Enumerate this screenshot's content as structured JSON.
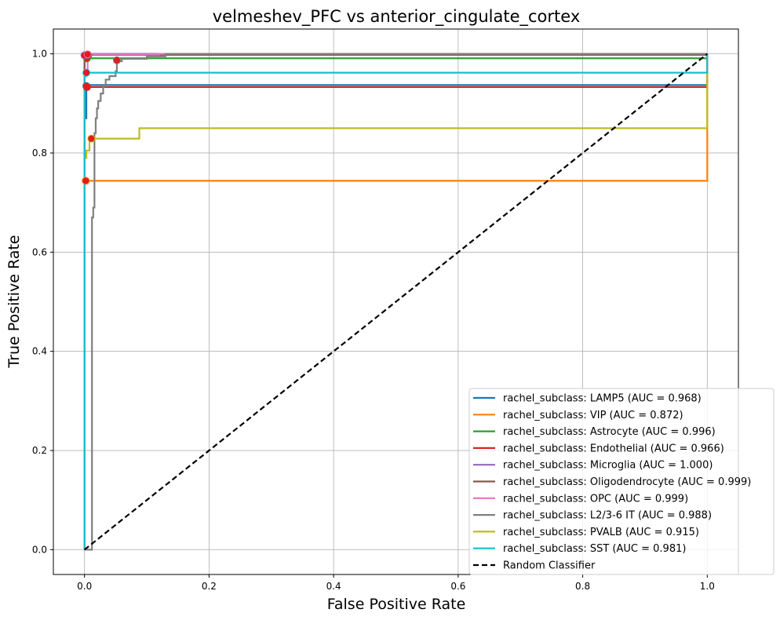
{
  "chart_data": {
    "type": "line",
    "title": "velmeshev_PFC vs anterior_cingulate_cortex",
    "xlabel": "False Positive Rate",
    "ylabel": "True Positive Rate",
    "xlim": [
      -0.05,
      1.05
    ],
    "ylim": [
      -0.05,
      1.05
    ],
    "xticks": [
      "0.0",
      "0.2",
      "0.4",
      "0.6",
      "0.8",
      "1.0"
    ],
    "yticks": [
      "0.0",
      "0.2",
      "0.4",
      "0.6",
      "0.8",
      "1.0"
    ],
    "grid": true,
    "legend_position": "lower-right",
    "series": [
      {
        "name": "rachel_subclass: LAMP5 (AUC = 0.968)",
        "color": "#1f77b4",
        "x": [
          0,
          0,
          0.003,
          0.003,
          0.006,
          0.006,
          1,
          1
        ],
        "y": [
          0,
          0.87,
          0.87,
          0.935,
          0.935,
          0.937,
          0.937,
          1
        ],
        "marker": [
          0.003,
          0.935
        ]
      },
      {
        "name": "rachel_subclass: VIP (AUC = 0.872)",
        "color": "#ff7f0e",
        "x": [
          0,
          0,
          0.003,
          0.003,
          1,
          1
        ],
        "y": [
          0,
          0.74,
          0.74,
          0.744,
          0.744,
          1
        ],
        "marker": [
          0.002,
          0.744
        ]
      },
      {
        "name": "rachel_subclass: Astrocyte (AUC = 0.996)",
        "color": "#2ca02c",
        "x": [
          0,
          0,
          0.004,
          0.004,
          1,
          1
        ],
        "y": [
          0,
          0.985,
          0.985,
          0.991,
          0.991,
          1
        ],
        "marker": [
          0.004,
          0.991
        ]
      },
      {
        "name": "rachel_subclass: Endothelial (AUC = 0.966)",
        "color": "#d62728",
        "x": [
          0,
          0,
          0.004,
          0.004,
          1,
          1
        ],
        "y": [
          0,
          0.93,
          0.93,
          0.933,
          0.933,
          1
        ],
        "marker": [
          0.004,
          0.933
        ]
      },
      {
        "name": "rachel_subclass: Microglia (AUC = 1.000)",
        "color": "#9467bd",
        "x": [
          0,
          0,
          1
        ],
        "y": [
          0,
          1,
          1
        ],
        "marker": [
          0.0,
          0.997
        ]
      },
      {
        "name": "rachel_subclass: Oligodendrocyte (AUC = 0.999)",
        "color": "#8c564b",
        "x": [
          0,
          0,
          0.004,
          0.004,
          1,
          1
        ],
        "y": [
          0,
          0.996,
          0.996,
          0.998,
          0.998,
          1
        ],
        "marker": [
          0.006,
          0.997
        ]
      },
      {
        "name": "rachel_subclass: OPC (AUC = 0.999)",
        "color": "#e377c2",
        "x": [
          0,
          0,
          0.005,
          0.005,
          0.12,
          0.12,
          1
        ],
        "y": [
          0,
          0.96,
          0.96,
          0.999,
          0.999,
          1,
          1
        ],
        "marker": [
          0.005,
          0.999
        ]
      },
      {
        "name": "rachel_subclass: L2/3-6 IT (AUC = 0.988)",
        "color": "#7f7f7f",
        "x": [
          0,
          0.012,
          0.012,
          0.014,
          0.014,
          0.016,
          0.016,
          0.018,
          0.018,
          0.02,
          0.02,
          0.022,
          0.022,
          0.026,
          0.026,
          0.03,
          0.03,
          0.034,
          0.034,
          0.04,
          0.04,
          0.05,
          0.05,
          0.052,
          0.052,
          0.06,
          0.06,
          0.1,
          0.1,
          0.13,
          0.13,
          1
        ],
        "y": [
          0,
          0,
          0.67,
          0.67,
          0.69,
          0.69,
          0.84,
          0.84,
          0.87,
          0.87,
          0.89,
          0.89,
          0.905,
          0.905,
          0.92,
          0.92,
          0.935,
          0.935,
          0.948,
          0.948,
          0.955,
          0.955,
          0.965,
          0.965,
          0.985,
          0.985,
          0.99,
          0.99,
          0.995,
          0.995,
          1,
          1
        ],
        "marker": [
          0.052,
          0.987
        ]
      },
      {
        "name": "rachel_subclass: PVALB (AUC = 0.915)",
        "color": "#bcbd22",
        "x": [
          0,
          0,
          0.003,
          0.003,
          0.008,
          0.008,
          0.012,
          0.012,
          0.088,
          0.088,
          1,
          1
        ],
        "y": [
          0,
          0.79,
          0.79,
          0.805,
          0.805,
          0.826,
          0.826,
          0.829,
          0.829,
          0.85,
          0.85,
          1
        ],
        "marker": [
          0.011,
          0.829
        ]
      },
      {
        "name": "rachel_subclass: SST (AUC = 0.981)",
        "color": "#17becf",
        "x": [
          0,
          0,
          0.003,
          0.003,
          1,
          1
        ],
        "y": [
          0,
          0.955,
          0.955,
          0.962,
          0.962,
          1
        ],
        "marker": [
          0.003,
          0.962
        ]
      },
      {
        "name": "Random Classifier",
        "color": "#000000",
        "dashed": true,
        "x": [
          0,
          1
        ],
        "y": [
          0,
          1
        ]
      }
    ]
  }
}
